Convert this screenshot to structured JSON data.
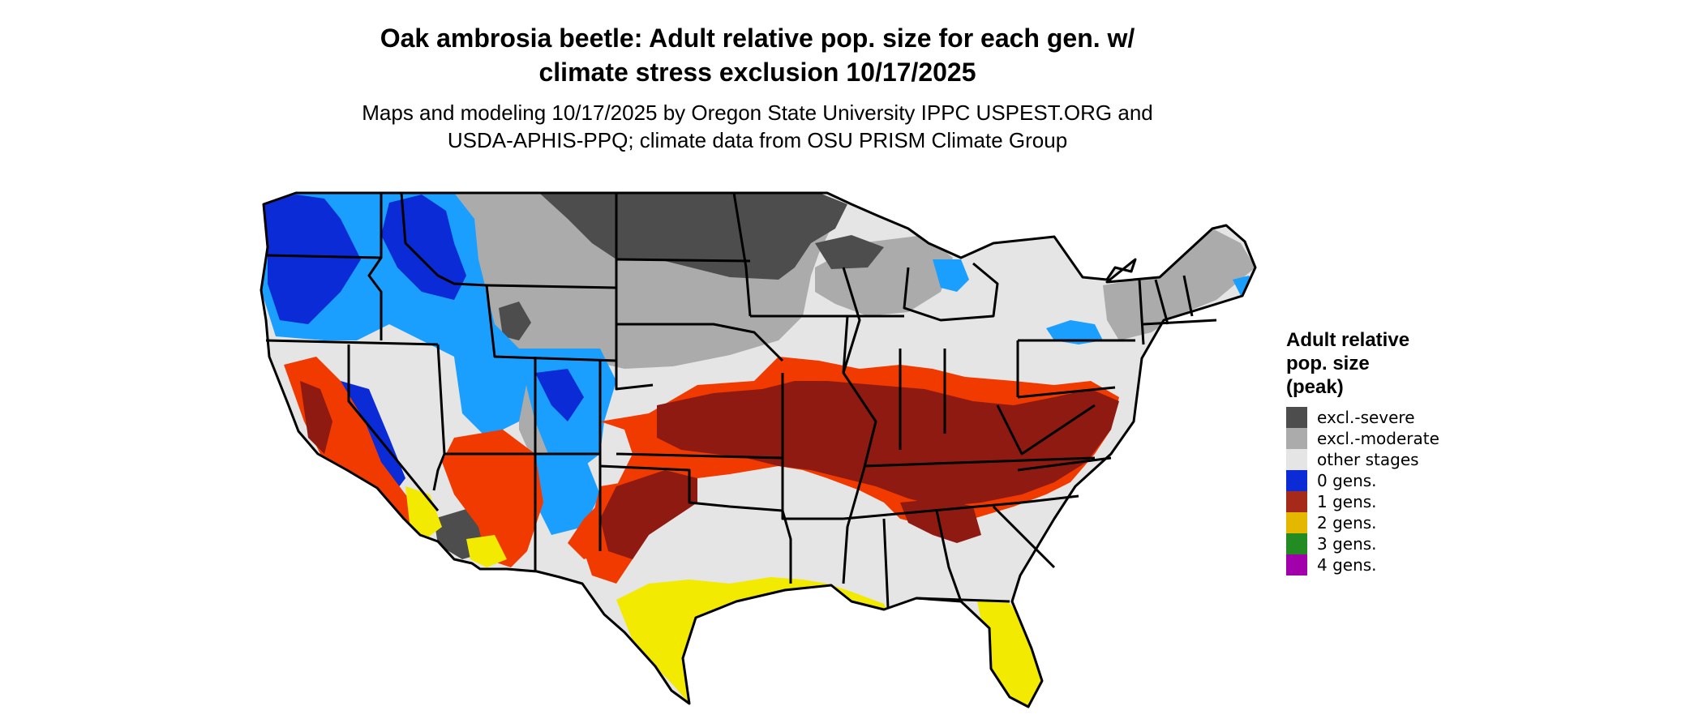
{
  "title": {
    "line1": "Oak ambrosia beetle: Adult relative pop. size for each gen. w/",
    "line2": "climate stress exclusion 10/17/2025"
  },
  "subtitle": {
    "line1": "Maps and modeling 10/17/2025 by Oregon State University IPPC USPEST.ORG and",
    "line2": "USDA-APHIS-PPQ; climate data from OSU PRISM Climate Group"
  },
  "legend": {
    "title_line1": "Adult relative",
    "title_line2": "pop. size",
    "title_line3": "(peak)",
    "items": [
      {
        "label": "excl.-severe",
        "color": "#4d4d4d"
      },
      {
        "label": "excl.-moderate",
        "color": "#ababab"
      },
      {
        "label": "other stages",
        "color": "#e5e5e5"
      },
      {
        "label": "0 gens.",
        "color": "#0a2bd6"
      },
      {
        "label": "1 gens.",
        "color": "#a52a1a"
      },
      {
        "label": "2 gens.",
        "color": "#e5b800"
      },
      {
        "label": "3 gens.",
        "color": "#228b22"
      },
      {
        "label": "4 gens.",
        "color": "#a100aa"
      }
    ]
  },
  "map": {
    "colors": {
      "severe": "#4d4d4d",
      "moderate": "#ababab",
      "other": "#e5e5e5",
      "zero_dark": "#0a2bd6",
      "zero_light": "#1a9fff",
      "one_dark": "#8e1a12",
      "one_light": "#f03a00",
      "two": "#f2ea00",
      "border": "#000000"
    }
  }
}
